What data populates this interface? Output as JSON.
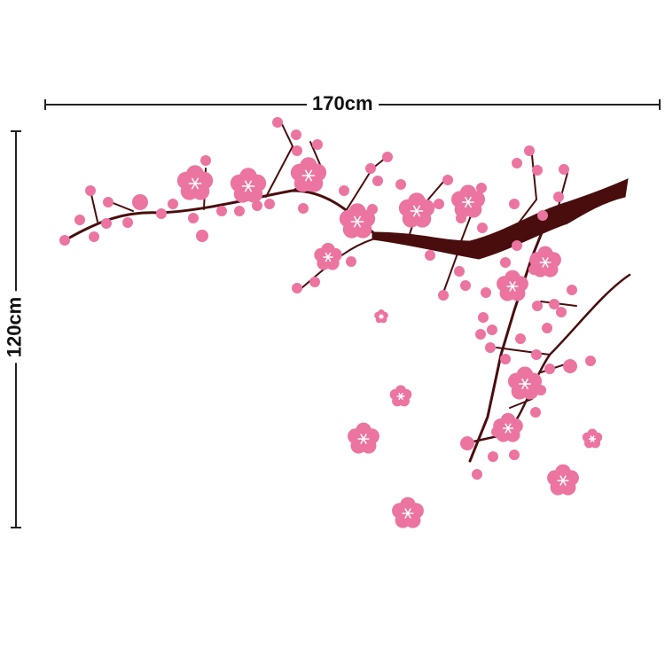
{
  "dimensions": {
    "width_label": "170cm",
    "height_label": "120cm"
  },
  "colors": {
    "blossom": "#ec74a0",
    "branch": "#4a0d0d",
    "dimension_line": "#222222"
  },
  "icons": [
    "cherry-blossom-branch-decal"
  ]
}
